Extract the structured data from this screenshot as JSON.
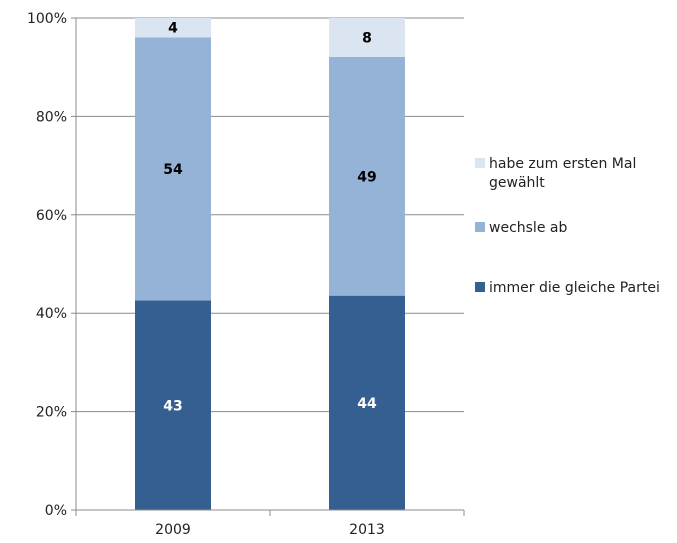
{
  "chart_data": {
    "type": "bar",
    "stacked": true,
    "percent_stacked": true,
    "categories": [
      "2009",
      "2013"
    ],
    "series": [
      {
        "name": "immer die gleiche Partei",
        "values": [
          43,
          44
        ],
        "color": "#365f91",
        "label_color": "#ffffff"
      },
      {
        "name": "wechsle ab",
        "values": [
          54,
          49
        ],
        "color": "#95b3d7",
        "label_color": "#000000"
      },
      {
        "name": "habe zum ersten Mal gewählt",
        "values": [
          4,
          8
        ],
        "color": "#dbe5f1",
        "label_color": "#000000"
      }
    ],
    "legend_order": [
      "habe zum ersten Mal gewählt",
      "wechsle ab",
      "immer die gleiche Partei"
    ],
    "legend_placement": "right",
    "y_ticks": [
      "0%",
      "20%",
      "40%",
      "60%",
      "80%",
      "100%"
    ],
    "ylim": [
      0,
      100
    ],
    "grid": true,
    "title": "",
    "xlabel": "",
    "ylabel": ""
  }
}
